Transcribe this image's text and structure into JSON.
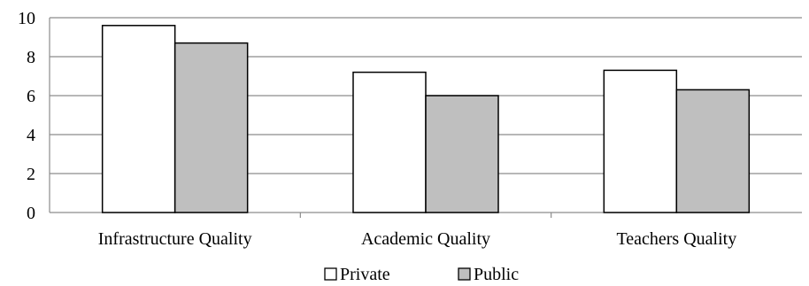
{
  "chart_data": {
    "type": "bar",
    "title": "",
    "xlabel": "",
    "ylabel": "",
    "categories": [
      "Infrastructure Quality",
      "Academic Quality",
      "Teachers Quality"
    ],
    "series": [
      {
        "name": "Private",
        "values": [
          9.6,
          7.2,
          7.3
        ],
        "color": "#ffffff"
      },
      {
        "name": "Public",
        "values": [
          8.7,
          6.0,
          6.3
        ],
        "color": "#bfbfbf"
      }
    ],
    "ylim": [
      0,
      10
    ],
    "yticks": [
      "0",
      "2",
      "4",
      "6",
      "8",
      "10"
    ],
    "grid": true,
    "legend_position": "bottom"
  }
}
